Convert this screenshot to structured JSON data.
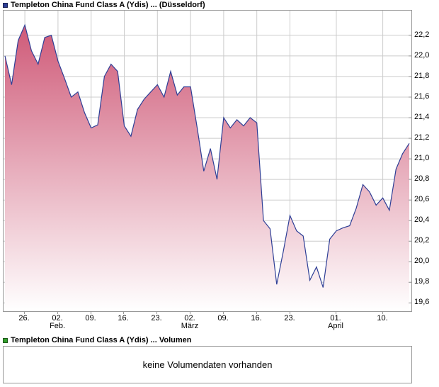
{
  "price_panel": {
    "title": "Templeton China Fund Class A (Ydis) ... (Düsseldorf)",
    "legend_color": "#2e3f96"
  },
  "volume_panel": {
    "title": "Templeton China Fund Class A (Ydis) ... Volumen",
    "legend_color": "#33a02c",
    "message": "keine Volumendaten vorhanden"
  },
  "chart_data": {
    "type": "area",
    "title": "Templeton China Fund Class A (Ydis) ... (Düsseldorf)",
    "xlabel": "",
    "ylabel": "",
    "ylim": [
      19.52,
      22.44
    ],
    "yticks": [
      19.6,
      19.8,
      20.0,
      20.2,
      20.4,
      20.6,
      20.8,
      21.0,
      21.2,
      21.4,
      21.6,
      21.8,
      22.0,
      22.2
    ],
    "ytick_format": "decimal-comma",
    "grid": true,
    "legend_position": "top-left",
    "line_color": "#2e3f96",
    "fill_top": "#cf5a78",
    "fill_bottom": "#ffffff",
    "grid_color": "#cccccc",
    "axis_color": "#999999",
    "x": [
      "21.01.",
      "22.01.",
      "23.01.",
      "26.01.",
      "27.01.",
      "28.01.",
      "29.01.",
      "30.01.",
      "02.02.",
      "03.02.",
      "04.02.",
      "05.02.",
      "06.02.",
      "09.02.",
      "10.02.",
      "11.02.",
      "12.02.",
      "13.02.",
      "16.02.",
      "17.02.",
      "18.02.",
      "19.02.",
      "20.02.",
      "23.02.",
      "24.02.",
      "25.02.",
      "26.02.",
      "27.02.",
      "02.03.",
      "03.03.",
      "04.03.",
      "05.03.",
      "06.03.",
      "09.03.",
      "10.03.",
      "11.03.",
      "12.03.",
      "13.03.",
      "16.03.",
      "17.03.",
      "18.03.",
      "19.03.",
      "20.03.",
      "23.03.",
      "24.03.",
      "25.03.",
      "26.03.",
      "27.03.",
      "30.03.",
      "31.03.",
      "01.04.",
      "02.04.",
      "03.04.",
      "06.04.",
      "07.04.",
      "08.04.",
      "09.04.",
      "10.04.",
      "13.04.",
      "14.04.",
      "15.04.",
      "16.04."
    ],
    "values": [
      22.0,
      21.72,
      22.15,
      22.3,
      22.05,
      21.92,
      22.18,
      22.2,
      21.95,
      21.78,
      21.6,
      21.65,
      21.45,
      21.3,
      21.33,
      21.8,
      21.92,
      21.85,
      21.32,
      21.22,
      21.48,
      21.58,
      21.65,
      21.72,
      21.6,
      21.85,
      21.62,
      21.7,
      21.7,
      21.3,
      20.88,
      21.1,
      20.8,
      21.4,
      21.3,
      21.38,
      21.32,
      21.4,
      21.35,
      20.4,
      20.32,
      19.78,
      20.1,
      20.45,
      20.3,
      20.25,
      19.82,
      19.95,
      19.75,
      20.22,
      20.3,
      20.33,
      20.35,
      20.52,
      20.75,
      20.68,
      20.55,
      20.62,
      20.5,
      20.9,
      21.05,
      21.15
    ],
    "xticks": [
      {
        "i": 3,
        "label": "26."
      },
      {
        "i": 8,
        "label": "02.",
        "month": "Feb."
      },
      {
        "i": 13,
        "label": "09."
      },
      {
        "i": 18,
        "label": "16."
      },
      {
        "i": 23,
        "label": "23."
      },
      {
        "i": 28,
        "label": "02.",
        "month": "März"
      },
      {
        "i": 33,
        "label": "09."
      },
      {
        "i": 38,
        "label": "16."
      },
      {
        "i": 43,
        "label": "23."
      },
      {
        "i": 50,
        "label": "01.",
        "month": "April"
      },
      {
        "i": 57,
        "label": "10."
      }
    ]
  }
}
